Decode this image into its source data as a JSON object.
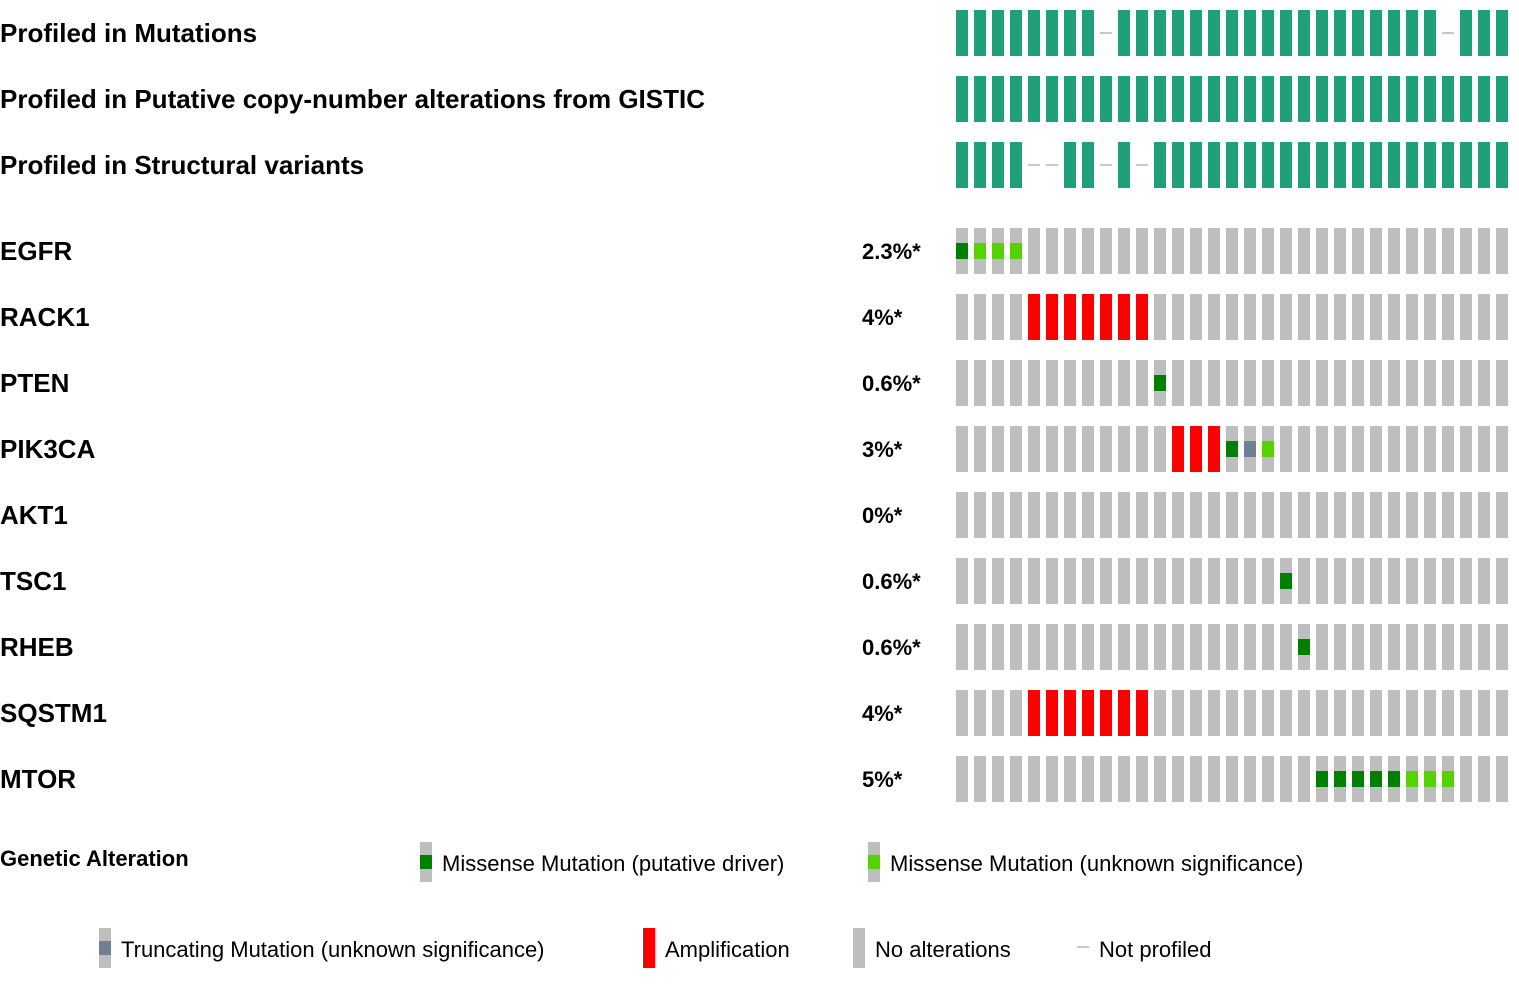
{
  "colors": {
    "profiled": "#1FA07A",
    "not_profiled": "#C8C8C8",
    "no_alteration": "#BEBEBE",
    "missense_driver": "#008000",
    "missense_vus": "#53D400",
    "truncating_vus": "#708090",
    "amplification": "#FF0000"
  },
  "chart_data": {
    "type": "heatmap",
    "n_samples": 31,
    "profile_tracks": [
      {
        "label": "Profiled in Mutations",
        "not_profiled": [
          8,
          27
        ]
      },
      {
        "label": "Profiled in Putative copy-number alterations from GISTIC",
        "not_profiled": []
      },
      {
        "label": "Profiled in Structural variants",
        "not_profiled": [
          4,
          5,
          8,
          10
        ]
      }
    ],
    "gene_tracks": [
      {
        "gene": "EGFR",
        "percent": "2.3%*",
        "alterations": [
          {
            "sample": 0,
            "type": "missense_driver"
          },
          {
            "sample": 1,
            "type": "missense_vus"
          },
          {
            "sample": 2,
            "type": "missense_vus"
          },
          {
            "sample": 3,
            "type": "missense_vus"
          }
        ]
      },
      {
        "gene": "RACK1",
        "percent": "4%*",
        "alterations": [
          {
            "sample": 4,
            "type": "amplification"
          },
          {
            "sample": 5,
            "type": "amplification"
          },
          {
            "sample": 6,
            "type": "amplification"
          },
          {
            "sample": 7,
            "type": "amplification"
          },
          {
            "sample": 8,
            "type": "amplification"
          },
          {
            "sample": 9,
            "type": "amplification"
          },
          {
            "sample": 10,
            "type": "amplification"
          }
        ]
      },
      {
        "gene": "PTEN",
        "percent": "0.6%*",
        "alterations": [
          {
            "sample": 11,
            "type": "missense_driver"
          }
        ]
      },
      {
        "gene": "PIK3CA",
        "percent": "3%*",
        "alterations": [
          {
            "sample": 12,
            "type": "amplification"
          },
          {
            "sample": 13,
            "type": "amplification"
          },
          {
            "sample": 14,
            "type": "amplification"
          },
          {
            "sample": 15,
            "type": "missense_driver"
          },
          {
            "sample": 16,
            "type": "truncating_vus"
          },
          {
            "sample": 17,
            "type": "missense_vus"
          }
        ]
      },
      {
        "gene": "AKT1",
        "percent": "0%*",
        "alterations": []
      },
      {
        "gene": "TSC1",
        "percent": "0.6%*",
        "alterations": [
          {
            "sample": 18,
            "type": "missense_driver"
          }
        ]
      },
      {
        "gene": "RHEB",
        "percent": "0.6%*",
        "alterations": [
          {
            "sample": 19,
            "type": "missense_driver"
          }
        ]
      },
      {
        "gene": "SQSTM1",
        "percent": "4%*",
        "alterations": [
          {
            "sample": 4,
            "type": "amplification"
          },
          {
            "sample": 5,
            "type": "amplification"
          },
          {
            "sample": 6,
            "type": "amplification"
          },
          {
            "sample": 7,
            "type": "amplification"
          },
          {
            "sample": 8,
            "type": "amplification"
          },
          {
            "sample": 9,
            "type": "amplification"
          },
          {
            "sample": 10,
            "type": "amplification"
          }
        ]
      },
      {
        "gene": "MTOR",
        "percent": "5%*",
        "alterations": [
          {
            "sample": 20,
            "type": "missense_driver"
          },
          {
            "sample": 21,
            "type": "missense_driver"
          },
          {
            "sample": 22,
            "type": "missense_driver"
          },
          {
            "sample": 23,
            "type": "missense_driver"
          },
          {
            "sample": 24,
            "type": "missense_driver"
          },
          {
            "sample": 25,
            "type": "missense_vus"
          },
          {
            "sample": 26,
            "type": "missense_vus"
          },
          {
            "sample": 27,
            "type": "missense_vus"
          }
        ]
      }
    ],
    "legend": {
      "title": "Genetic Alteration",
      "items": [
        {
          "type": "missense_driver",
          "label": "Missense Mutation (putative driver)"
        },
        {
          "type": "missense_vus",
          "label": "Missense Mutation (unknown significance)"
        },
        {
          "type": "truncating_vus",
          "label": "Truncating Mutation (unknown significance)"
        },
        {
          "type": "amplification",
          "label": "Amplification"
        },
        {
          "type": "no_alteration",
          "label": "No alterations"
        },
        {
          "type": "not_profiled",
          "label": "Not profiled"
        }
      ]
    }
  }
}
